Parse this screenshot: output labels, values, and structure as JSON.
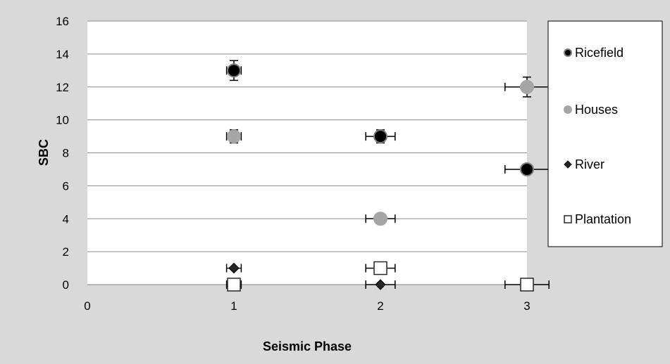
{
  "chart_data": {
    "type": "scatter",
    "xlabel": "Seismic Phase",
    "ylabel": "SBC",
    "xlim": [
      0,
      3
    ],
    "ylim": [
      0,
      16
    ],
    "xticks": [
      0,
      1,
      2,
      3
    ],
    "yticks": [
      0,
      2,
      4,
      6,
      8,
      10,
      12,
      14,
      16
    ],
    "grid": "horizontal",
    "legend_position": "right",
    "series": [
      {
        "name": "Ricefield",
        "marker": "circle",
        "fill": "#000000",
        "stroke": "#7f7f7f",
        "points": [
          {
            "x": 1,
            "y": 13,
            "xerr": 0.05,
            "yerr": 0.6
          },
          {
            "x": 2,
            "y": 9,
            "xerr": 0.1,
            "yerr": 0.4
          },
          {
            "x": 3,
            "y": 7,
            "xerr": 0.15,
            "yerr": 0
          }
        ]
      },
      {
        "name": "Houses",
        "marker": "circle",
        "fill": "#a6a6a6",
        "stroke": "#a6a6a6",
        "points": [
          {
            "x": 1,
            "y": 9,
            "xerr": 0.05,
            "yerr": 0.4
          },
          {
            "x": 2,
            "y": 4,
            "xerr": 0.1,
            "yerr": 0
          },
          {
            "x": 3,
            "y": 12,
            "xerr": 0.15,
            "yerr": 0.6
          }
        ]
      },
      {
        "name": "River",
        "marker": "diamond",
        "fill": "#262626",
        "stroke": "#000000",
        "points": [
          {
            "x": 1,
            "y": 1,
            "xerr": 0.05,
            "yerr": 0
          },
          {
            "x": 2,
            "y": 0,
            "xerr": 0.1,
            "yerr": 0
          }
        ]
      },
      {
        "name": "Plantation",
        "marker": "square",
        "fill": "#ffffff",
        "stroke": "#262626",
        "points": [
          {
            "x": 1,
            "y": 0,
            "xerr": 0.05,
            "yerr": 0
          },
          {
            "x": 2,
            "y": 1,
            "xerr": 0.1,
            "yerr": 0
          },
          {
            "x": 3,
            "y": 0,
            "xerr": 0.15,
            "yerr": 0
          }
        ]
      }
    ]
  }
}
